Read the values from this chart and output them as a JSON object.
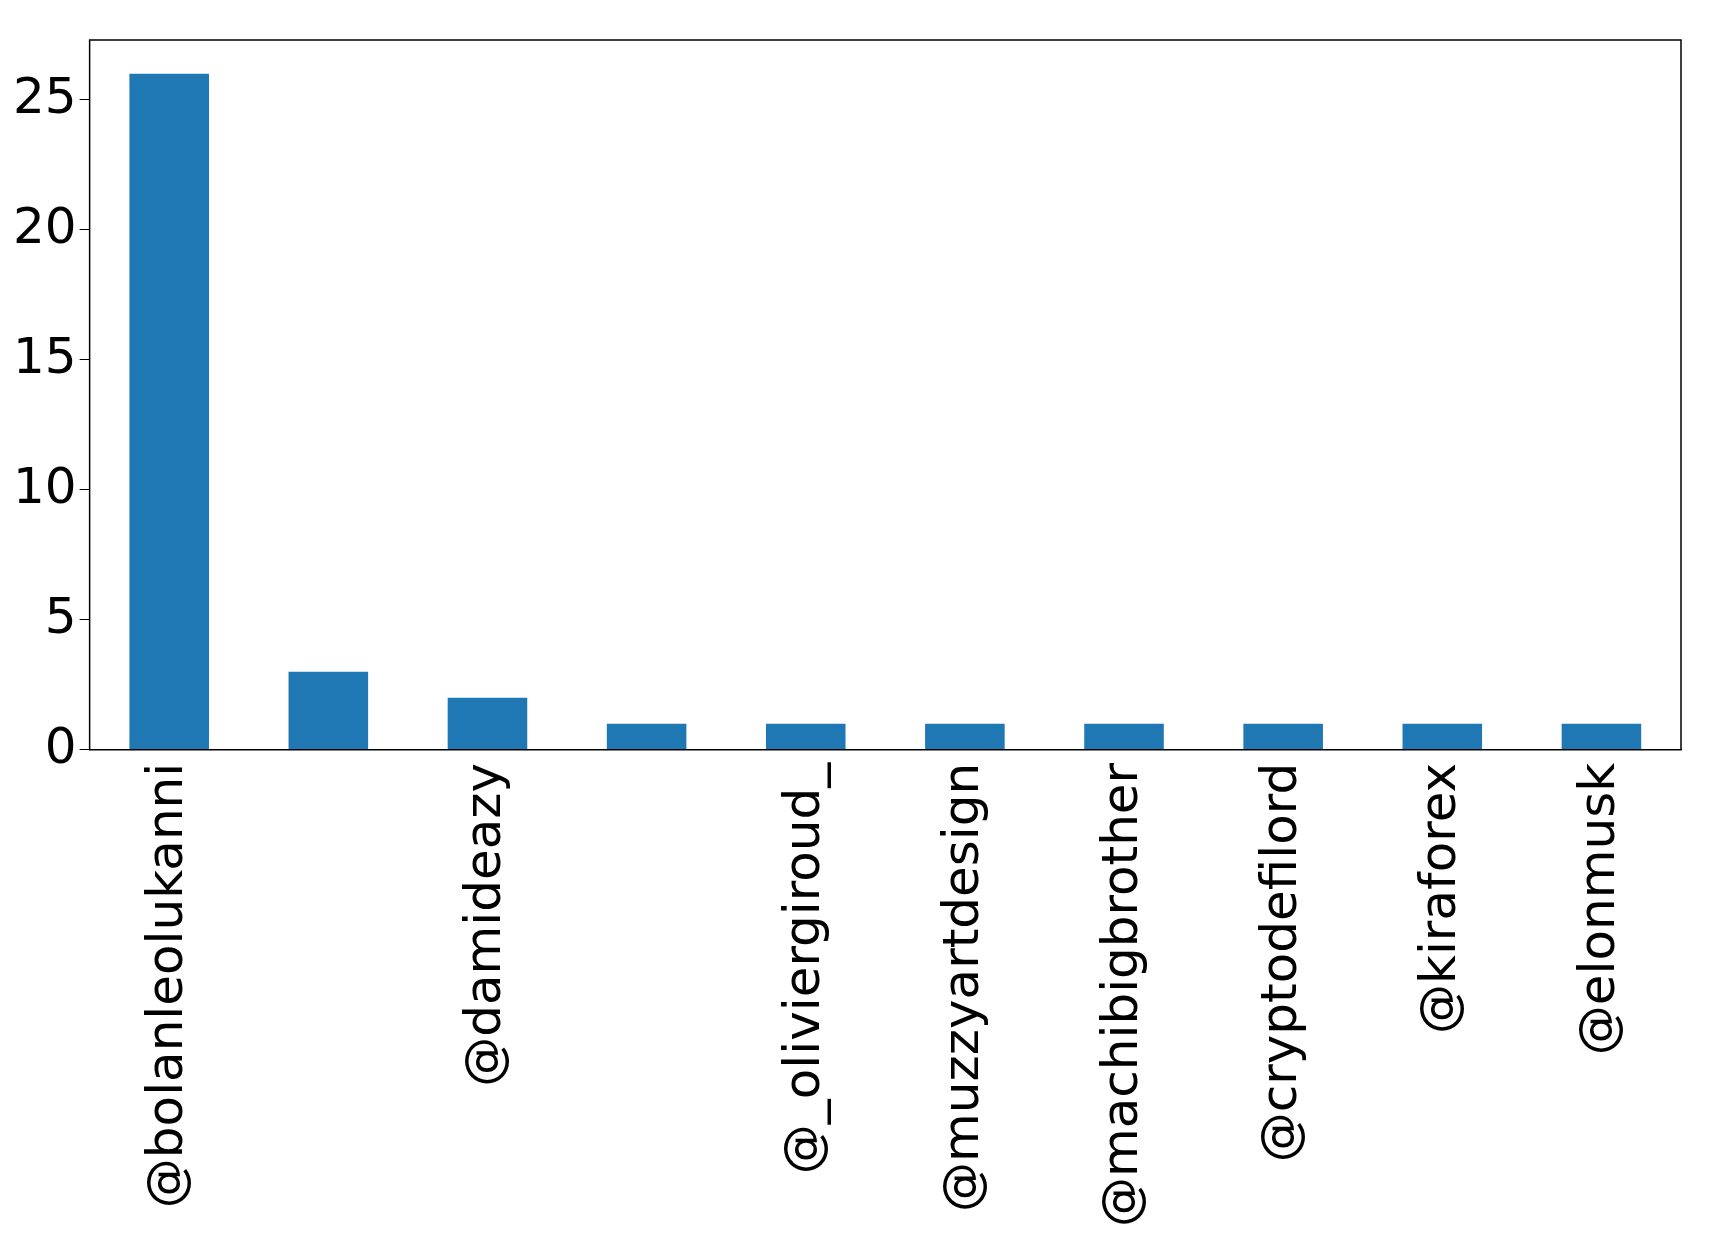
{
  "chart_data": {
    "type": "bar",
    "categories": [
      "@bolanleolukanni",
      null,
      "@damideazy",
      null,
      "@_oliviergiroud_",
      "@muzzyartdesign",
      "@machibigbrother",
      "@cryptodefilord",
      "@kiraforex",
      "@elonmusk"
    ],
    "values": [
      26,
      3,
      2,
      1,
      1,
      1,
      1,
      1,
      1,
      1
    ],
    "color": "#1f77b4",
    "ylim": [
      0,
      27.3
    ],
    "yticks": [
      0,
      5,
      10,
      15,
      20,
      25
    ],
    "grid": false,
    "legend": false
  }
}
